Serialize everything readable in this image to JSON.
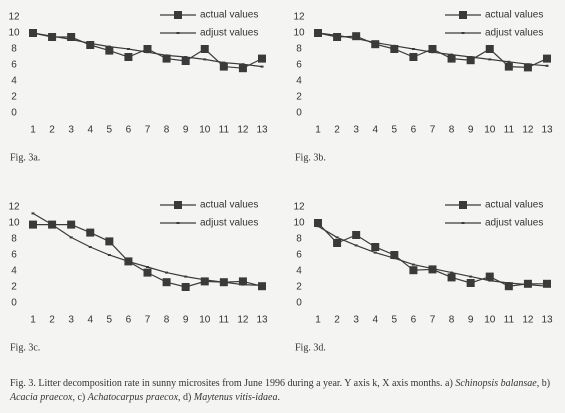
{
  "chart_data": [
    {
      "type": "line",
      "label": "Fig. 3a.",
      "categories": [
        "1",
        "2",
        "3",
        "4",
        "5",
        "6",
        "7",
        "8",
        "9",
        "10",
        "11",
        "12",
        "13"
      ],
      "series": [
        {
          "name": "actual values",
          "color": "#3a3a3a",
          "marker": "square",
          "values": [
            10,
            9.5,
            9.5,
            8.5,
            7.8,
            7,
            8,
            6.8,
            6.5,
            8,
            5.8,
            5.6,
            6.8
          ]
        },
        {
          "name": "adjust values",
          "color": "#3a3a3a",
          "marker": "none",
          "values": [
            10,
            9.6,
            9.2,
            8.7,
            8.3,
            8,
            7.6,
            7.2,
            7,
            6.7,
            6.3,
            6.1,
            5.8
          ]
        }
      ],
      "ylim": [
        0,
        12
      ],
      "yticks": [
        0,
        2,
        4,
        6,
        8,
        10,
        12
      ],
      "legend": "upper right"
    },
    {
      "type": "line",
      "label": "Fig. 3b.",
      "categories": [
        "1",
        "2",
        "3",
        "4",
        "5",
        "6",
        "7",
        "8",
        "9",
        "10",
        "11",
        "12",
        "13"
      ],
      "series": [
        {
          "name": "actual values",
          "color": "#3a3a3a",
          "marker": "square",
          "values": [
            10,
            9.5,
            9.6,
            8.6,
            8,
            7,
            8,
            6.8,
            6.6,
            8,
            5.8,
            5.7,
            6.8
          ]
        },
        {
          "name": "adjust values",
          "color": "#3a3a3a",
          "marker": "none",
          "values": [
            10,
            9.7,
            9.3,
            8.8,
            8.4,
            8,
            7.6,
            7.3,
            7,
            6.7,
            6.4,
            6.1,
            5.9
          ]
        }
      ],
      "ylim": [
        0,
        12
      ],
      "yticks": [
        0,
        2,
        4,
        6,
        8,
        10,
        12
      ],
      "legend": "upper right"
    },
    {
      "type": "line",
      "label": "Fig. 3c.",
      "categories": [
        "1",
        "2",
        "3",
        "4",
        "5",
        "6",
        "7",
        "8",
        "9",
        "10",
        "11",
        "12",
        "13"
      ],
      "series": [
        {
          "name": "actual values",
          "color": "#3a3a3a",
          "marker": "square",
          "values": [
            9.8,
            9.8,
            9.8,
            8.8,
            7.7,
            5.2,
            3.8,
            2.6,
            2,
            2.7,
            2.6,
            2.7,
            2.1
          ]
        },
        {
          "name": "adjust values",
          "color": "#3a3a3a",
          "marker": "none",
          "values": [
            11.2,
            9.8,
            8.2,
            7,
            6,
            5.2,
            4.5,
            3.8,
            3.3,
            2.9,
            2.6,
            2.3,
            2.2
          ]
        }
      ],
      "ylim": [
        0,
        12
      ],
      "yticks": [
        0,
        2,
        4,
        6,
        8,
        10,
        12
      ],
      "legend": "upper right"
    },
    {
      "type": "line",
      "label": "Fig. 3d.",
      "categories": [
        "1",
        "2",
        "3",
        "4",
        "5",
        "6",
        "7",
        "8",
        "9",
        "10",
        "11",
        "12",
        "13"
      ],
      "series": [
        {
          "name": "actual values",
          "color": "#3a3a3a",
          "marker": "square",
          "values": [
            10,
            7.5,
            8.5,
            7,
            6,
            4.1,
            4.2,
            3.2,
            2.5,
            3.3,
            2.1,
            2.4,
            2.4
          ]
        },
        {
          "name": "adjust values",
          "color": "#3a3a3a",
          "marker": "none",
          "values": [
            9.6,
            8.2,
            7.2,
            6.3,
            5.6,
            4.8,
            4.3,
            3.8,
            3.3,
            2.8,
            2.5,
            2.3,
            2.1
          ]
        }
      ],
      "ylim": [
        0,
        12
      ],
      "yticks": [
        0,
        2,
        4,
        6,
        8,
        10,
        12
      ],
      "legend": "upper right"
    }
  ],
  "caption": [
    {
      "text": "Fig. 3.  Litter decomposition rate in sunny microsites from June 1996 during a year. Y axis k, X axis months. a) ",
      "italic": false
    },
    {
      "text": "Schinopsis balansae",
      "italic": true
    },
    {
      "text": ", b) ",
      "italic": false
    },
    {
      "text": "Acacia praecox",
      "italic": true
    },
    {
      "text": ", c) ",
      "italic": false
    },
    {
      "text": "Achatocarpus praecox",
      "italic": true
    },
    {
      "text": ", d) ",
      "italic": false
    },
    {
      "text": "Maytenus vitis-idaea",
      "italic": true
    },
    {
      "text": ".",
      "italic": false
    }
  ]
}
